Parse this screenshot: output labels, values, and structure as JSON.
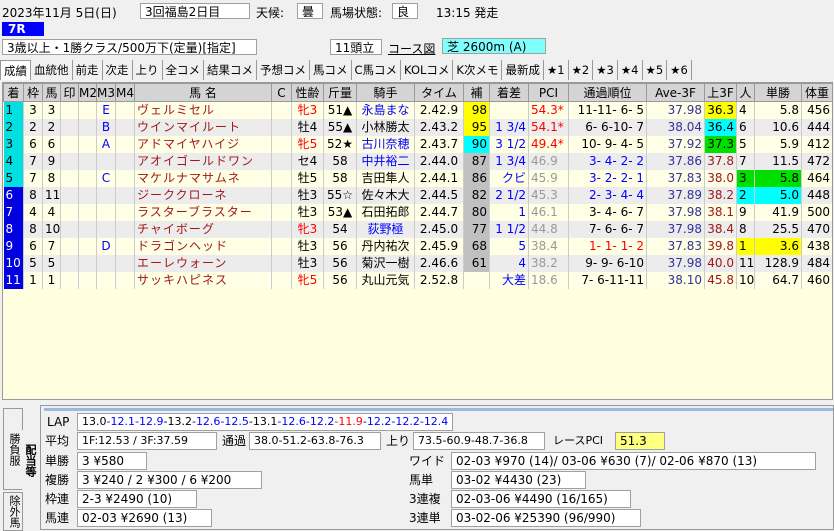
{
  "header": {
    "date": "2023年11月 5日(日)",
    "meeting": "3回福島2日目",
    "weather_label": "天候:",
    "weather": "曇",
    "track_label": "馬場状態:",
    "track": "良",
    "post_time": "13:15 発走",
    "race_no": "7R",
    "conditions": "3歳以上・1勝クラス/500万下(定量)[指定]",
    "runners": "11頭立",
    "course_link": "コース図",
    "course": "芝 2600m (A)"
  },
  "tabs": [
    "成績",
    "血統他",
    "前走",
    "次走",
    "上り",
    "全コメ",
    "結果コメ",
    "予想コメ",
    "馬コメ",
    "C馬コメ",
    "KOLコメ",
    "K次メモ",
    "最新成",
    "★1",
    "★2",
    "★3",
    "★4",
    "★5",
    "★6"
  ],
  "columns": [
    "着",
    "枠",
    "馬",
    "印",
    "M2",
    "M3",
    "M4",
    "馬 名",
    "C",
    "性齢",
    "斤量",
    "騎手",
    "タイム",
    "補",
    "着差",
    "PCI",
    "通過順位",
    "Ave-3F",
    "上3F",
    "人",
    "単勝",
    "体重"
  ],
  "rows": [
    {
      "rank": "1",
      "waku": "3",
      "uma": "3",
      "m3": "E",
      "name": "ヴェルミセル",
      "sex": "牝3",
      "wt": "51▲",
      "jockey": "永島まな",
      "jblue": true,
      "time": "2.42.9",
      "ho": "98",
      "hohl": "#ffff00",
      "margin": "",
      "pci": "54.3*",
      "pcired": true,
      "pass": "11-11- 6- 5",
      "passc": "#000",
      "ave": "37.98",
      "l3f": "36.3",
      "l3hl": "#ffff00",
      "pop": "4",
      "odds": "5.8",
      "bw": "456"
    },
    {
      "rank": "2",
      "waku": "2",
      "uma": "2",
      "m3": "B",
      "name": "ウインマイルート",
      "sex": "牡4",
      "wt": "55▲",
      "jockey": "小林勝太",
      "time": "2.43.2",
      "ho": "95",
      "hohl": "#ffff00",
      "margin": "1 3/4",
      "pci": "54.1*",
      "pcired": true,
      "pass": "6- 6-10- 7",
      "passc": "#000",
      "ave": "38.04",
      "l3f": "36.4",
      "l3hl": "#00ffff",
      "pop": "6",
      "odds": "10.6",
      "bw": "444"
    },
    {
      "rank": "3",
      "waku": "6",
      "uma": "6",
      "m3": "A",
      "name": "アドマイヤハイジ",
      "sex": "牝5",
      "wt": "52★",
      "jockey": "古川奈穂",
      "jblue": true,
      "time": "2.43.7",
      "ho": "90",
      "hohl": "#00ffff",
      "margin": "3 1/2",
      "pci": "49.4*",
      "pcired": true,
      "pass": "10- 9- 4- 5",
      "passc": "#000",
      "ave": "37.92",
      "l3f": "37.3",
      "l3hl": "#00e000",
      "pop": "5",
      "odds": "5.9",
      "bw": "412"
    },
    {
      "rank": "4",
      "waku": "7",
      "uma": "9",
      "m3": "",
      "name": "アオイゴールドワン",
      "sex": "セ4",
      "wt": "58",
      "jockey": "中井裕二",
      "jblue": true,
      "time": "2.44.0",
      "ho": "87",
      "margin": "1 3/4",
      "pci": "46.9",
      "pass": "3- 4- 2- 2",
      "passc": "#0000ff",
      "ave": "37.86",
      "l3f": "37.8",
      "pop": "7",
      "odds": "11.5",
      "bw": "472"
    },
    {
      "rank": "5",
      "waku": "7",
      "uma": "8",
      "m3": "C",
      "name": "マケルナマサムネ",
      "sex": "牡5",
      "wt": "58",
      "jockey": "吉田隼人",
      "time": "2.44.1",
      "ho": "86",
      "margin": "クビ",
      "pci": "45.9",
      "pass": "3- 2- 2- 1",
      "passc": "#0000ff",
      "ave": "37.83",
      "l3f": "38.0",
      "pop": "3",
      "pophl": "#00e000",
      "odds": "5.8",
      "oddshl": "#00e000",
      "bw": "464"
    },
    {
      "rank": "6",
      "waku": "8",
      "uma": "11",
      "m3": "",
      "name": "ジーククローネ",
      "sex": "牡3",
      "wt": "55☆",
      "jockey": "佐々木大",
      "time": "2.44.5",
      "ho": "82",
      "margin": "2 1/2",
      "pci": "45.3",
      "pass": "2- 3- 4- 4",
      "passc": "#0000ff",
      "ave": "37.89",
      "l3f": "38.2",
      "pop": "2",
      "pophl": "#00ffff",
      "odds": "5.0",
      "oddshl": "#00ffff",
      "bw": "448"
    },
    {
      "rank": "7",
      "waku": "4",
      "uma": "4",
      "m3": "",
      "name": "ラスターブラスター",
      "sex": "牡3",
      "wt": "53▲",
      "jockey": "石田拓郎",
      "time": "2.44.7",
      "ho": "80",
      "margin": "1",
      "pci": "46.1",
      "pass": "3- 4- 6- 7",
      "passc": "#000",
      "ave": "37.98",
      "l3f": "38.1",
      "pop": "9",
      "odds": "41.9",
      "bw": "500"
    },
    {
      "rank": "8",
      "waku": "8",
      "uma": "10",
      "m3": "",
      "name": "チャイボーグ",
      "sex": "牝3",
      "wt": "54",
      "jockey": "荻野極",
      "jblue": true,
      "time": "2.45.0",
      "ho": "77",
      "margin": "1 1/2",
      "pci": "44.8",
      "pass": "7- 6- 6- 7",
      "passc": "#000",
      "ave": "37.98",
      "l3f": "38.4",
      "pop": "8",
      "odds": "25.5",
      "bw": "470"
    },
    {
      "rank": "9",
      "waku": "6",
      "uma": "7",
      "m3": "D",
      "name": "ドラゴンヘッド",
      "sex": "牡3",
      "wt": "56",
      "jockey": "丹内祐次",
      "time": "2.45.9",
      "ho": "68",
      "margin": "5",
      "pci": "38.4",
      "pass": "1- 1- 1- 2",
      "passc": "#ff0000",
      "ave": "37.83",
      "l3f": "39.8",
      "pop": "1",
      "pophl": "#ffff00",
      "odds": "3.6",
      "oddshl": "#ffff00",
      "bw": "438"
    },
    {
      "rank": "10",
      "waku": "5",
      "uma": "5",
      "m3": "",
      "name": "エーレウォーン",
      "sex": "牡3",
      "wt": "56",
      "jockey": "菊沢一樹",
      "time": "2.46.6",
      "ho": "61",
      "margin": "4",
      "pci": "38.2",
      "pass": "9- 9- 6-10",
      "passc": "#000",
      "ave": "37.98",
      "l3f": "40.0",
      "pop": "11",
      "odds": "128.9",
      "bw": "484"
    },
    {
      "rank": "11",
      "waku": "1",
      "uma": "1",
      "m3": "",
      "name": "サッキハピネス",
      "sex": "牝5",
      "wt": "56",
      "jockey": "丸山元気",
      "time": "2.52.8",
      "ho": "",
      "margin": "大差",
      "pci": "18.6",
      "pass": "7- 6-11-11",
      "passc": "#000",
      "ave": "38.10",
      "l3f": "45.8",
      "pop": "10",
      "odds": "64.7",
      "bw": "460"
    }
  ],
  "side_tabs": {
    "silks": "勝負服",
    "payout": "配当等",
    "excluded": "除外馬"
  },
  "summary": {
    "lap_label": "LAP",
    "laps": [
      {
        "v": "13.0",
        "c": "#000"
      },
      {
        "v": "12.1",
        "c": "#0000ff"
      },
      {
        "v": "12.9",
        "c": "#0000ff"
      },
      {
        "v": "13.2",
        "c": "#000"
      },
      {
        "v": "12.6",
        "c": "#0000ff"
      },
      {
        "v": "12.5",
        "c": "#0000ff"
      },
      {
        "v": "13.1",
        "c": "#000"
      },
      {
        "v": "12.6",
        "c": "#0000ff"
      },
      {
        "v": "12.2",
        "c": "#0000ff"
      },
      {
        "v": "11.9",
        "c": "#ff0000"
      },
      {
        "v": "12.2",
        "c": "#0000ff"
      },
      {
        "v": "12.2",
        "c": "#0000ff"
      },
      {
        "v": "12.4",
        "c": "#0000ff"
      }
    ],
    "avg_label": "平均",
    "avg": "1F:12.53 / 3F:37.59",
    "pass_label": "通過",
    "pass": "38.0-51.2-63.8-76.3",
    "up_label": "上り",
    "up": "73.5-60.9-48.7-36.8",
    "pci_label": "レースPCI",
    "pci": "51.3"
  },
  "payouts": {
    "win_label": "単勝",
    "win": "3 ¥580",
    "place_label": "複勝",
    "place": "3 ¥240 / 2 ¥300 / 6 ¥200",
    "bracket_label": "枠連",
    "bracket": "2-3 ¥2490 (10)",
    "quinella_label": "馬連",
    "quinella": "02-03 ¥2690 (13)",
    "wide_label": "ワイド",
    "wide": "02-03 ¥970 (14)/ 03-06 ¥630 (7)/ 02-06 ¥870 (13)",
    "exacta_label": "馬単",
    "exacta": "03-02 ¥4430 (23)",
    "trio_label": "3連複",
    "trio": "02-03-06 ¥4490 (16/165)",
    "trifecta_label": "3連単",
    "trifecta": "03-02-06 ¥25390 (96/990)"
  }
}
